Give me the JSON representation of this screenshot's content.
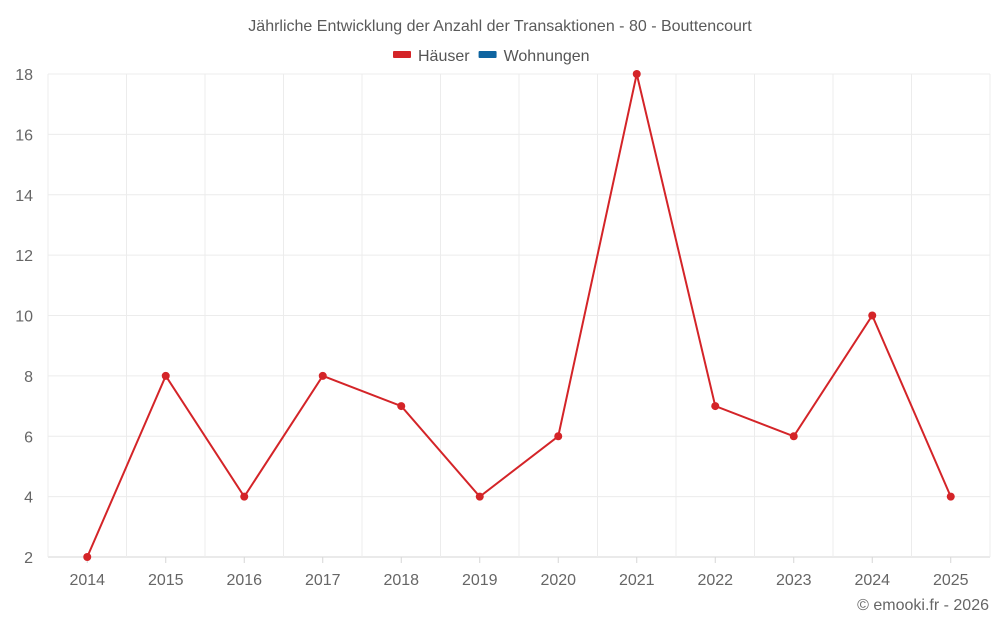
{
  "chart_data": {
    "type": "line",
    "title": "Jährliche Entwicklung der Anzahl der Transaktionen - 80 - Bouttencourt",
    "categories": [
      "2014",
      "2015",
      "2016",
      "2017",
      "2018",
      "2019",
      "2020",
      "2021",
      "2022",
      "2023",
      "2024",
      "2025"
    ],
    "series": [
      {
        "name": "Häuser",
        "color": "#d42428",
        "values": [
          2,
          8,
          4,
          8,
          7,
          4,
          6,
          18,
          7,
          6,
          10,
          4
        ]
      },
      {
        "name": "Wohnungen",
        "color": "#0e64a0",
        "values": []
      }
    ],
    "xlabel": "",
    "ylabel": "",
    "ylim": [
      2,
      18
    ],
    "yticks": [
      2,
      4,
      6,
      8,
      10,
      12,
      14,
      16,
      18
    ],
    "grid": true,
    "legend_position": "top"
  },
  "credit": "© emooki.fr - 2026"
}
